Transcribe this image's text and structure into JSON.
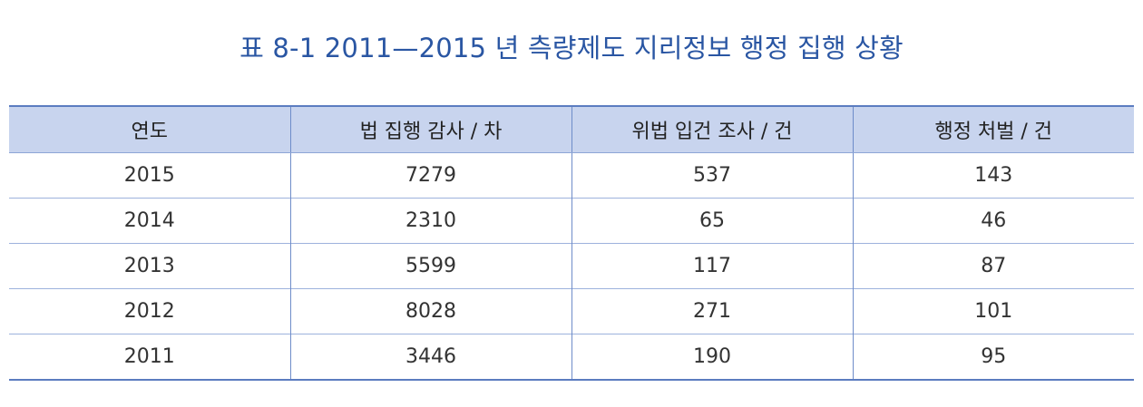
{
  "title": "표 8-1 2011—2015 년 측량제도 지리정보 행정 집행 상황",
  "table": {
    "headers": [
      "연도",
      "법 집행 감사 / 차",
      "위법 입건 조사 / 건",
      "행정 처벌 / 건"
    ],
    "rows": [
      [
        "2015",
        "7279",
        "537",
        "143"
      ],
      [
        "2014",
        "2310",
        "65",
        "46"
      ],
      [
        "2013",
        "5599",
        "117",
        "87"
      ],
      [
        "2012",
        "8028",
        "271",
        "101"
      ],
      [
        "2011",
        "3446",
        "190",
        "95"
      ]
    ]
  },
  "colors": {
    "title": "#2a56a3",
    "header_background": "#c8d4ee",
    "rule": "#5b7cc0"
  }
}
